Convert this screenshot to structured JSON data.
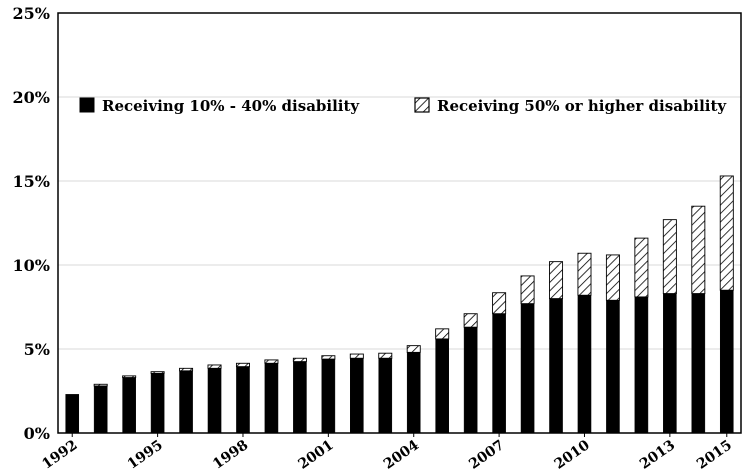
{
  "chart_data": {
    "type": "bar",
    "stacked": true,
    "title": "",
    "xlabel": "",
    "ylabel": "",
    "ylim": [
      0,
      25
    ],
    "y_ticks": [
      "0%",
      "5%",
      "10%",
      "15%",
      "20%",
      "25%"
    ],
    "y_tick_values": [
      0,
      5,
      10,
      15,
      20,
      25
    ],
    "x_tick_labels": [
      "1992",
      "1995",
      "1998",
      "2001",
      "2004",
      "2007",
      "2010",
      "2013",
      "2015"
    ],
    "grid": "horizontal",
    "legend_position": "top",
    "categories": [
      "1992",
      "1993",
      "1994",
      "1995",
      "1996",
      "1997",
      "1998",
      "1999",
      "2000",
      "2001",
      "2002",
      "2003",
      "2004",
      "2005",
      "2006",
      "2007",
      "2008",
      "2009",
      "2010",
      "2011",
      "2012",
      "2013",
      "2014",
      "2015"
    ],
    "series": [
      {
        "name": "Receiving 10% - 40% disability",
        "color": "#000000",
        "pattern": "solid",
        "values": [
          2.3,
          2.8,
          3.3,
          3.55,
          3.7,
          3.85,
          3.95,
          4.15,
          4.25,
          4.4,
          4.45,
          4.45,
          4.8,
          5.6,
          6.3,
          7.1,
          7.7,
          8.0,
          8.2,
          7.9,
          8.1,
          8.3,
          8.3,
          8.5
        ]
      },
      {
        "name": "Receiving 50% or higher disability",
        "color": "#000000",
        "pattern": "diagonal-hatch",
        "values": [
          0.0,
          0.1,
          0.1,
          0.1,
          0.15,
          0.2,
          0.2,
          0.2,
          0.2,
          0.2,
          0.25,
          0.3,
          0.4,
          0.6,
          0.8,
          1.25,
          1.65,
          2.2,
          2.5,
          2.7,
          3.5,
          4.4,
          5.2,
          6.8
        ]
      }
    ]
  }
}
